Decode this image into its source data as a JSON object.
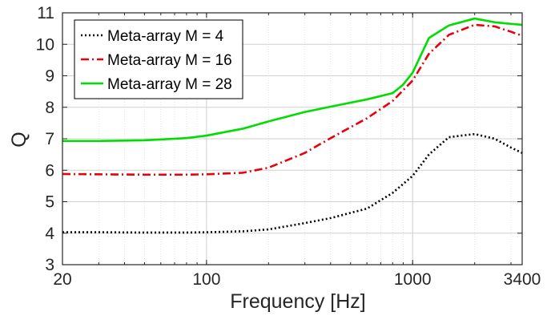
{
  "chart_data": {
    "type": "line",
    "title": "",
    "xlabel": "Frequency [Hz]",
    "ylabel": "Q",
    "xscale": "log",
    "xlim": [
      20,
      3400
    ],
    "ylim": [
      3,
      11
    ],
    "xticks": [
      {
        "value": 20,
        "label": "20"
      },
      {
        "value": 100,
        "label": "100"
      },
      {
        "value": 1000,
        "label": "1000"
      },
      {
        "value": 3400,
        "label": "3400"
      }
    ],
    "yticks": [
      3,
      4,
      5,
      6,
      7,
      8,
      9,
      10,
      11
    ],
    "grid": true,
    "legend_position": "top-left",
    "series": [
      {
        "name": "Meta-array M = 4",
        "color": "#000000",
        "dash": "dotted",
        "x": [
          20,
          30,
          50,
          80,
          100,
          150,
          200,
          300,
          400,
          600,
          800,
          1000,
          1200,
          1500,
          2000,
          2500,
          3000,
          3400
        ],
        "y": [
          4.03,
          4.03,
          4.02,
          4.02,
          4.03,
          4.06,
          4.12,
          4.32,
          4.48,
          4.78,
          5.28,
          5.82,
          6.5,
          7.05,
          7.15,
          7.0,
          6.72,
          6.55
        ]
      },
      {
        "name": "Meta-array M = 16",
        "color": "#e8000b",
        "dash": "dashdot",
        "x": [
          20,
          30,
          50,
          80,
          100,
          150,
          200,
          300,
          400,
          600,
          800,
          1000,
          1200,
          1500,
          2000,
          2500,
          3000,
          3400
        ],
        "y": [
          5.88,
          5.87,
          5.86,
          5.86,
          5.87,
          5.92,
          6.08,
          6.55,
          7.02,
          7.65,
          8.2,
          8.85,
          9.7,
          10.3,
          10.62,
          10.57,
          10.4,
          10.27
        ]
      },
      {
        "name": "Meta-array M = 28",
        "color": "#00dd00",
        "dash": "solid",
        "x": [
          20,
          30,
          50,
          80,
          100,
          150,
          200,
          300,
          400,
          600,
          800,
          900,
          1000,
          1200,
          1500,
          2000,
          2500,
          3000,
          3400
        ],
        "y": [
          6.93,
          6.93,
          6.95,
          7.02,
          7.1,
          7.32,
          7.55,
          7.85,
          8.02,
          8.25,
          8.45,
          8.72,
          9.1,
          10.2,
          10.6,
          10.82,
          10.7,
          10.65,
          10.62
        ]
      }
    ]
  }
}
